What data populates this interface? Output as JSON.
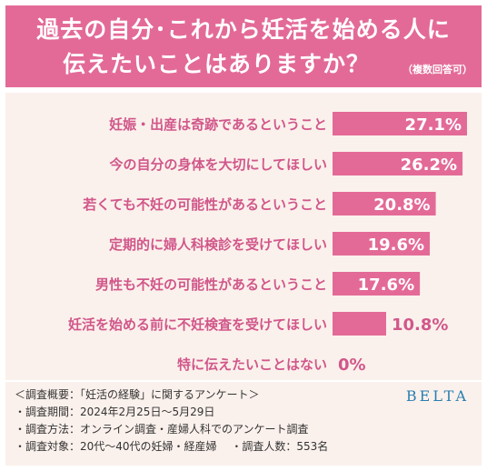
{
  "title": {
    "line1": "過去の自分･これから妊活を始める人に",
    "line2": "伝えたいことはありますか？",
    "note": "（複数回答可）"
  },
  "colors": {
    "accent": "#e36a97",
    "background": "#fbf1ec"
  },
  "chart_data": {
    "type": "bar",
    "orientation": "horizontal",
    "categories": [
      "妊娠・出産は奇跡であるということ",
      "今の自分の身体を大切にしてほしい",
      "若くても不妊の可能性があるということ",
      "定期的に婦人科検診を受けてほしい",
      "男性も不妊の可能性があるということ",
      "妊活を始める前に不妊検査を受けてほしい",
      "特に伝えたいことはない"
    ],
    "values": [
      27.1,
      26.2,
      20.8,
      19.6,
      17.6,
      10.8,
      0
    ],
    "value_labels": [
      "27.1%",
      "26.2%",
      "20.8%",
      "19.6%",
      "17.6%",
      "10.8%",
      "0%"
    ],
    "xlim": [
      0,
      27.1
    ],
    "grid": false,
    "legend": "none"
  },
  "footer": {
    "lines": [
      "＜調査概要：「妊活の経験」に関するアンケート＞",
      "・調査期間：2024年2月25日～5月29日",
      "・調査方法：オンライン調査・産婦人科でのアンケート調査",
      "・調査対象：20代～40代の妊婦・経産婦　 ・調査人数：553名"
    ],
    "brand": "BELTA"
  }
}
